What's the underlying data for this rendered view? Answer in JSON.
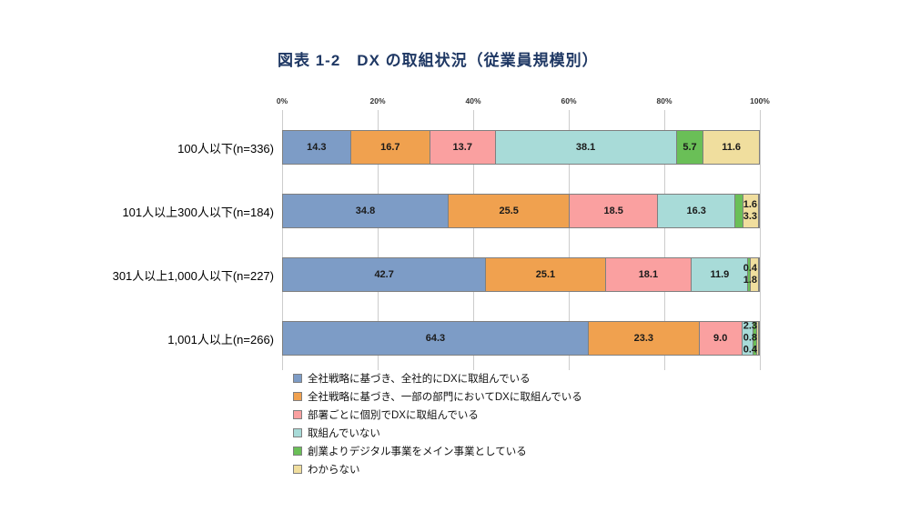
{
  "chart_data": {
    "type": "bar",
    "orientation": "horizontal",
    "stacked": true,
    "title": "図表 1-2　DX の取組状況（従業員規模別）",
    "title_color": "#1f3864",
    "x_axis": {
      "min": 0,
      "max": 100,
      "tick_labels": [
        "0%",
        "20%",
        "40%",
        "60%",
        "80%",
        "100%"
      ],
      "grid": true,
      "legend_position": "bottom"
    },
    "label_inside_min_value": 5,
    "categories": [
      "100人以下(n=336)",
      "101人以上300人以下(n=184)",
      "301人以上1,000人以下(n=227)",
      "1,001人以上(n=266)"
    ],
    "series": [
      {
        "name": "全社戦略に基づき、全社的にDXに取組んでいる",
        "color": "#7d9cc6",
        "values": [
          14.3,
          34.8,
          42.7,
          64.3
        ]
      },
      {
        "name": "全社戦略に基づき、一部の部門においてDXに取組んでいる",
        "color": "#f0a14f",
        "values": [
          16.7,
          25.5,
          25.1,
          23.3
        ]
      },
      {
        "name": "部署ごとに個別でDXに取組んでいる",
        "color": "#faa0a0",
        "values": [
          13.7,
          18.5,
          18.1,
          9.0
        ]
      },
      {
        "name": "取組んでいない",
        "color": "#a8dbd8",
        "values": [
          38.1,
          16.3,
          11.9,
          2.3
        ]
      },
      {
        "name": "創業よりデジタル事業をメイン事業としている",
        "color": "#6abf57",
        "values": [
          5.7,
          1.6,
          0.4,
          0.8
        ]
      },
      {
        "name": "わからない",
        "color": "#f0de9e",
        "values": [
          11.6,
          3.3,
          1.8,
          0.4
        ]
      }
    ]
  }
}
